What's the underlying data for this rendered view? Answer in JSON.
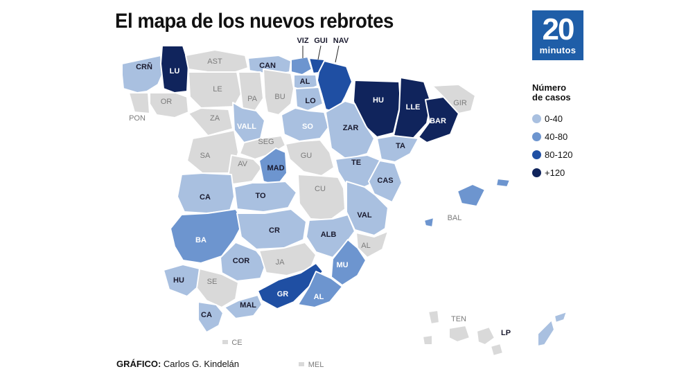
{
  "title": "El mapa de los nuevos rebrotes",
  "logo": {
    "number": "20",
    "word": "minutos"
  },
  "legend": {
    "title_line1": "Número",
    "title_line2": "de casos",
    "items": [
      {
        "label": "0-40",
        "color": "#a9c0e0"
      },
      {
        "label": "40-80",
        "color": "#6d95cf"
      },
      {
        "label": "80-120",
        "color": "#1f4fa3"
      },
      {
        "label": "+120",
        "color": "#10245c"
      }
    ]
  },
  "colors": {
    "none": "#d9d9d9",
    "c0_40": "#a9c0e0",
    "c40_80": "#6d95cf",
    "c80_120": "#1f4fa3",
    "c120": "#10245c"
  },
  "credit": {
    "label": "GRÁFICO:",
    "author": "Carlos G. Kindelán"
  },
  "provinces": {
    "lu": "LU",
    "crn": "CRÑ",
    "or": "OR",
    "pon": "PON",
    "ast": "AST",
    "can": "CAN",
    "viz": "VIZ",
    "gui": "GUI",
    "nav": "NAV",
    "al_alava": "AL",
    "le": "LE",
    "pa": "PA",
    "bu": "BU",
    "lo": "LO",
    "hu_huesca": "HU",
    "lle": "LLE",
    "bar": "BAR",
    "gir": "GIR",
    "za": "ZA",
    "vall": "VALL",
    "so": "SO",
    "zar": "ZAR",
    "ta": "TA",
    "sa": "SA",
    "seg": "SEG",
    "av": "AV",
    "gu": "GU",
    "mad": "MAD",
    "te": "TE",
    "cas": "CAS",
    "ca_caceres": "CA",
    "to": "TO",
    "cu": "CU",
    "val": "VAL",
    "bal": "BAL",
    "ba": "BA",
    "cr": "CR",
    "alb": "ALB",
    "al_alicante": "AL",
    "cor": "COR",
    "ja": "JA",
    "mu": "MU",
    "hu_huelva": "HU",
    "se": "SE",
    "gr": "GR",
    "al_almeria": "AL",
    "mal": "MAL",
    "ca_cadiz": "CA",
    "ce": "CE",
    "mel": "MEL",
    "ten": "TEN",
    "lp": "LP"
  }
}
